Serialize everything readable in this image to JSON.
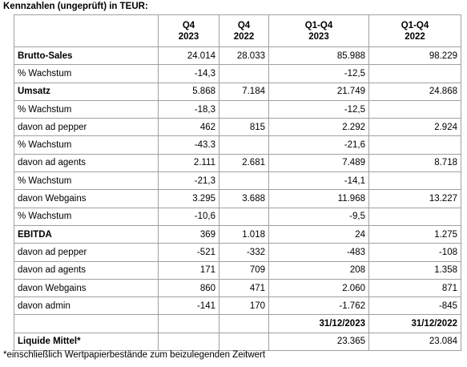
{
  "title": "Kennzahlen (ungeprüft) in TEUR:",
  "table": {
    "header": [
      null,
      [
        "Q4",
        "2023"
      ],
      [
        "Q4",
        "2022"
      ],
      [
        "Q1-Q4",
        "2023"
      ],
      [
        "Q1-Q4",
        "2022"
      ]
    ],
    "rows": [
      {
        "label": "Brutto-Sales",
        "bold": true,
        "values": [
          "24.014",
          "28.033",
          "85.988",
          "98.229"
        ]
      },
      {
        "label": "% Wachstum",
        "values": [
          "-14,3",
          null,
          "-12,5",
          null
        ]
      },
      {
        "label": "Umsatz",
        "bold": true,
        "values": [
          "5.868",
          "7.184",
          "21.749",
          "24.868"
        ]
      },
      {
        "label": "% Wachstum",
        "values": [
          "-18,3",
          null,
          "-12,5",
          null
        ]
      },
      {
        "label": "davon ad pepper",
        "values": [
          "462",
          "815",
          "2.292",
          "2.924"
        ]
      },
      {
        "label": "% Wachstum",
        "values": [
          "-43.3",
          null,
          "-21,6",
          null
        ]
      },
      {
        "label": "davon ad agents",
        "values": [
          "2.111",
          "2.681",
          "7.489",
          "8.718"
        ]
      },
      {
        "label": "% Wachstum",
        "values": [
          "-21,3",
          null,
          "-14,1",
          null
        ]
      },
      {
        "label": "davon Webgains",
        "values": [
          "3.295",
          "3.688",
          "11.968",
          "13.227"
        ]
      },
      {
        "label": "% Wachstum",
        "values": [
          "-10,6",
          null,
          "-9,5",
          null
        ]
      },
      {
        "label": "EBITDA",
        "bold": true,
        "values": [
          "369",
          "1.018",
          "24",
          "1.275"
        ]
      },
      {
        "label": "davon ad pepper",
        "values": [
          "-521",
          "-332",
          "-483",
          "-108"
        ]
      },
      {
        "label": "davon ad agents",
        "values": [
          "171",
          "709",
          "208",
          "1.358"
        ]
      },
      {
        "label": "davon Webgains",
        "values": [
          "860",
          "471",
          "2.060",
          "871"
        ]
      },
      {
        "label": "davon admin",
        "values": [
          "-141",
          "170",
          "-1.762",
          "-845"
        ]
      },
      {
        "label": null,
        "boldValues": true,
        "values": [
          null,
          null,
          "31/12/2023",
          "31/12/2022"
        ]
      },
      {
        "label": "Liquide Mittel*",
        "bold": true,
        "values": [
          null,
          null,
          "23.365",
          "23.084"
        ]
      }
    ]
  },
  "footnote": "*einschließlich Wertpapierbestände zum beizulegenden Zeitwert"
}
